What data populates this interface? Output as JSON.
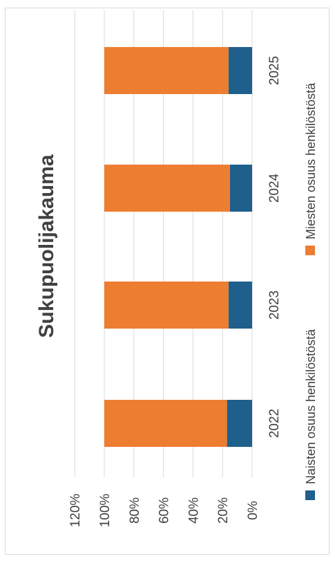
{
  "chart_data": {
    "type": "bar",
    "orientation": "stacked-100-percent-rotated",
    "title": "Sukupuolijakauma",
    "categories": [
      "2022",
      "2023",
      "2024",
      "2025"
    ],
    "series": [
      {
        "name": "Naisten osuus henkilöstöstä",
        "values": [
          0.17,
          0.16,
          0.15,
          0.16
        ],
        "color": "#1f5f8b"
      },
      {
        "name": "Miesten osuus henkilöstöstä",
        "values": [
          0.83,
          0.84,
          0.85,
          0.84
        ],
        "color": "#ed7d31"
      }
    ],
    "value_axis": {
      "ticks": [
        "0%",
        "20%",
        "40%",
        "60%",
        "80%",
        "100%",
        "120%"
      ],
      "range": [
        0,
        1.2
      ]
    },
    "grid": true,
    "legend_position": "bottom"
  }
}
